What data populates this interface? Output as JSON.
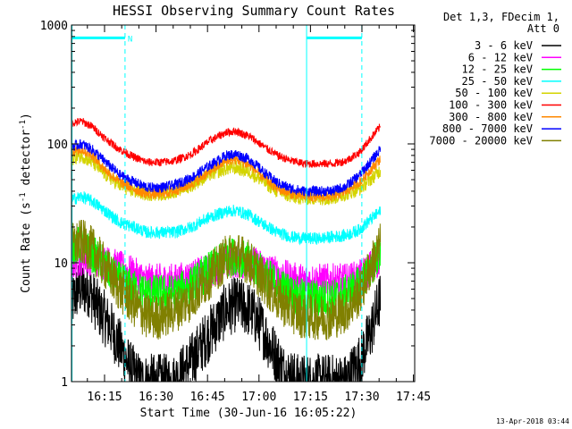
{
  "chart_data": {
    "type": "line",
    "title": "HESSI Observing Summary Count Rates",
    "xlabel": "Start Time (30-Jun-16 16:05:22)",
    "ylabel_main": "Count Rate (s",
    "ylabel_sup1": "-1",
    "ylabel_mid": " detector",
    "ylabel_sup2": "-1",
    "ylabel_end": ")",
    "y_scale": "log",
    "xlim_minutes": [
      0,
      100
    ],
    "ylim": [
      1,
      1000
    ],
    "x_ticks": [
      {
        "label": "16:15",
        "minute": 9.63
      },
      {
        "label": "16:30",
        "minute": 24.63
      },
      {
        "label": "16:45",
        "minute": 39.63
      },
      {
        "label": "17:00",
        "minute": 54.63
      },
      {
        "label": "17:15",
        "minute": 69.63
      },
      {
        "label": "17:30",
        "minute": 84.63
      },
      {
        "label": "17:45",
        "minute": 99.63
      }
    ],
    "y_ticks": [
      {
        "label": "1",
        "value": 1
      },
      {
        "label": "10",
        "value": 10
      },
      {
        "label": "100",
        "value": 100
      },
      {
        "label": "1000",
        "value": 1000
      }
    ],
    "legend_header": [
      "Det 1,3, FDecim 1,",
      "Att 0"
    ],
    "timestamp": "13-Apr-2018 03:44",
    "series": [
      {
        "name": "3 - 6 keV",
        "color": "#000000",
        "x": [
          0,
          2,
          5,
          8,
          11,
          14,
          17,
          20,
          22,
          25,
          30,
          35,
          40,
          45,
          48,
          52,
          55,
          58,
          62,
          66,
          70,
          72,
          76,
          80,
          84,
          87,
          90
        ],
        "values": [
          4.5,
          6,
          6,
          4,
          3,
          2,
          1.3,
          1,
          1,
          1,
          1,
          1.5,
          2.5,
          4,
          4.5,
          4,
          3,
          2,
          1.2,
          1,
          1,
          1,
          1,
          1,
          1.5,
          2.5,
          5
        ]
      },
      {
        "name": "6 - 12 keV",
        "color": "#ff00ff",
        "x": [
          0,
          3,
          6,
          10,
          14,
          18,
          22,
          26,
          30,
          35,
          40,
          45,
          48,
          52,
          56,
          60,
          64,
          68,
          72,
          76,
          80,
          84,
          87,
          90
        ],
        "values": [
          10,
          11,
          11,
          10,
          9,
          8,
          7,
          7,
          7,
          7.5,
          8.5,
          10,
          10.5,
          10,
          9,
          8,
          7.2,
          7,
          7,
          7,
          7,
          7.5,
          9,
          11
        ]
      },
      {
        "name": "12 - 25 keV",
        "color": "#00ff00",
        "x": [
          0,
          3,
          6,
          10,
          14,
          18,
          22,
          26,
          30,
          35,
          40,
          45,
          48,
          52,
          56,
          60,
          64,
          68,
          72,
          76,
          80,
          84,
          87,
          90
        ],
        "values": [
          14,
          14,
          12,
          9,
          7,
          6,
          5.5,
          5.5,
          5.5,
          6.5,
          8.5,
          11,
          11.5,
          10,
          8,
          6.5,
          5.5,
          5,
          5,
          5,
          5.5,
          6.5,
          9,
          12
        ]
      },
      {
        "name": "25 - 50 keV",
        "color": "#00ffff",
        "x": [
          0,
          3,
          6,
          10,
          14,
          18,
          22,
          26,
          30,
          35,
          40,
          45,
          48,
          52,
          56,
          60,
          64,
          68,
          72,
          76,
          80,
          84,
          87,
          90
        ],
        "values": [
          34,
          36,
          33,
          27,
          22,
          20,
          18,
          18,
          18,
          20,
          24,
          27,
          27.5,
          25,
          21,
          18,
          16.5,
          16,
          16,
          16.5,
          17,
          19,
          23,
          27
        ]
      },
      {
        "name": "50 - 100 keV",
        "color": "#d4d400",
        "x": [
          0,
          3,
          6,
          10,
          14,
          18,
          22,
          26,
          30,
          35,
          40,
          45,
          48,
          52,
          56,
          60,
          64,
          68,
          72,
          76,
          80,
          84,
          87,
          90
        ],
        "values": [
          75,
          80,
          70,
          55,
          45,
          40,
          38,
          38,
          40,
          45,
          55,
          62,
          63,
          58,
          48,
          40,
          36,
          35,
          35,
          35,
          38,
          42,
          50,
          60
        ]
      },
      {
        "name": "100 - 300 keV",
        "color": "#ff0000",
        "x": [
          0,
          3,
          6,
          10,
          14,
          18,
          22,
          26,
          30,
          35,
          40,
          45,
          48,
          52,
          56,
          60,
          64,
          68,
          72,
          76,
          80,
          84,
          87,
          90
        ],
        "values": [
          150,
          155,
          140,
          110,
          90,
          78,
          70,
          70,
          72,
          82,
          105,
          125,
          128,
          115,
          95,
          80,
          72,
          68,
          68,
          68,
          72,
          85,
          110,
          140
        ]
      },
      {
        "name": "300 - 800 keV",
        "color": "#ff8800",
        "x": [
          0,
          3,
          6,
          10,
          14,
          18,
          22,
          26,
          30,
          35,
          40,
          45,
          48,
          52,
          56,
          60,
          64,
          68,
          72,
          76,
          80,
          84,
          87,
          90
        ],
        "values": [
          85,
          90,
          80,
          60,
          48,
          42,
          38,
          38,
          40,
          46,
          58,
          72,
          74,
          66,
          52,
          42,
          38,
          36,
          36,
          36,
          40,
          48,
          60,
          75
        ]
      },
      {
        "name": "800 - 7000 keV",
        "color": "#0000ff",
        "x": [
          0,
          3,
          6,
          10,
          14,
          18,
          22,
          26,
          30,
          35,
          40,
          45,
          48,
          52,
          56,
          60,
          64,
          68,
          72,
          76,
          80,
          84,
          87,
          90
        ],
        "values": [
          95,
          100,
          90,
          70,
          55,
          48,
          43,
          43,
          45,
          52,
          65,
          80,
          82,
          74,
          58,
          47,
          42,
          40,
          40,
          40,
          44,
          55,
          70,
          90
        ]
      },
      {
        "name": "7000 - 20000 keV",
        "color": "#808000",
        "x": [
          0,
          3,
          6,
          10,
          14,
          18,
          22,
          26,
          30,
          35,
          40,
          45,
          48,
          52,
          56,
          60,
          64,
          68,
          72,
          76,
          80,
          84,
          87,
          90
        ],
        "values": [
          14,
          15,
          13,
          9,
          6,
          4.5,
          3.5,
          3.5,
          4,
          5,
          7.5,
          11,
          12,
          10,
          7,
          5,
          4,
          3.5,
          3.5,
          3.5,
          4,
          5.5,
          9,
          14
        ]
      }
    ],
    "vlines_minutes_solid": [
      0.15,
      68.5
    ],
    "vlines_minutes_dashed": [
      15.6,
      84.6
    ],
    "night_bars_minutes": [
      [
        0.15,
        15.6
      ],
      [
        68.5,
        84.6
      ]
    ],
    "night_bar_level": 780,
    "night_label": "N",
    "grid": false,
    "legend_position": "right"
  }
}
